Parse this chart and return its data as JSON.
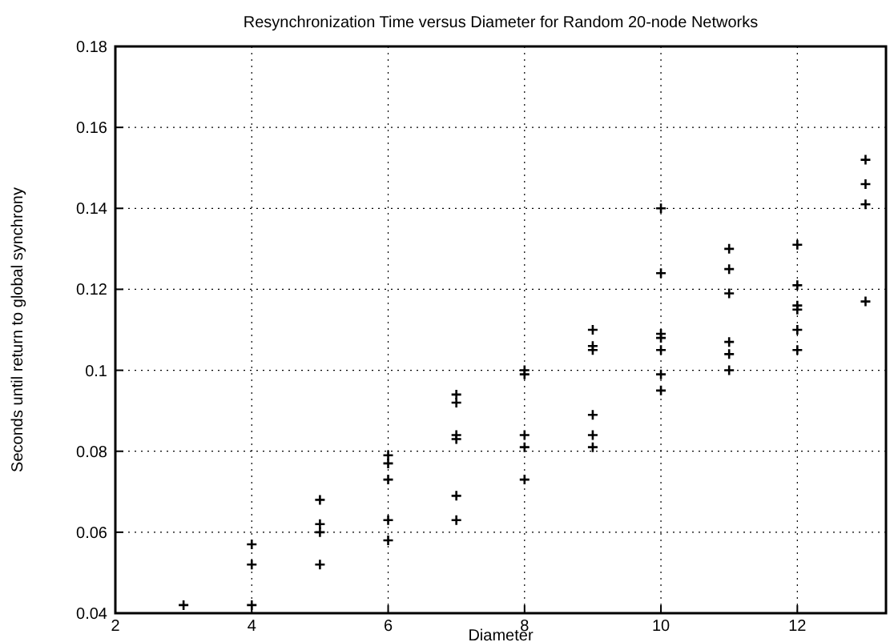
{
  "chart_data": {
    "type": "scatter",
    "title": "Resynchronization Time versus Diameter for Random 20-node Networks",
    "xlabel": "Diameter",
    "ylabel": "Seconds until return to global synchrony",
    "x": [
      3,
      4,
      4,
      4,
      5,
      5,
      5,
      5,
      6,
      6,
      6,
      6,
      6,
      7,
      7,
      7,
      7,
      7,
      7,
      8,
      8,
      8,
      8,
      8,
      9,
      9,
      9,
      9,
      9,
      9,
      10,
      10,
      10,
      10,
      10,
      10,
      10,
      11,
      11,
      11,
      11,
      11,
      11,
      12,
      12,
      12,
      12,
      12,
      12,
      13,
      13,
      13,
      13
    ],
    "values": [
      0.042,
      0.057,
      0.052,
      0.042,
      0.068,
      0.062,
      0.06,
      0.052,
      0.079,
      0.077,
      0.073,
      0.063,
      0.058,
      0.094,
      0.092,
      0.084,
      0.083,
      0.069,
      0.063,
      0.1,
      0.099,
      0.084,
      0.081,
      0.073,
      0.11,
      0.106,
      0.105,
      0.089,
      0.084,
      0.081,
      0.14,
      0.124,
      0.109,
      0.108,
      0.105,
      0.099,
      0.095,
      0.13,
      0.125,
      0.119,
      0.107,
      0.104,
      0.1,
      0.131,
      0.121,
      0.116,
      0.115,
      0.11,
      0.105,
      0.152,
      0.146,
      0.141,
      0.117
    ],
    "color": "#000000",
    "marker": "cross",
    "grid": true,
    "xlim": [
      2,
      13.3
    ],
    "xticks": [
      2,
      4,
      6,
      8,
      10,
      12
    ],
    "ylim": [
      0.04,
      0.18
    ],
    "yticks": [
      0.04,
      0.06,
      0.08,
      0.1,
      0.12,
      0.14,
      0.16,
      0.18
    ]
  }
}
